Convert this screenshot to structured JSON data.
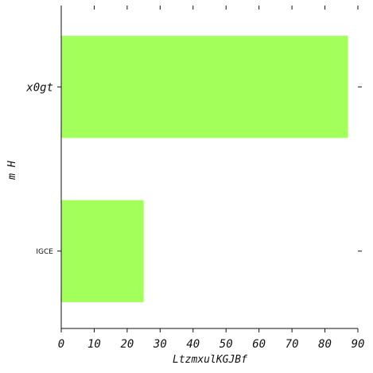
{
  "chart_data": {
    "type": "bar",
    "orientation": "horizontal",
    "categories": [
      "x0gt",
      "IGCE"
    ],
    "values": [
      87,
      25
    ],
    "xlabel": "LtzmxulKGJBf",
    "ylabel": "m H",
    "xlim": [
      0,
      90
    ],
    "xticks": [
      "0",
      "10",
      "20",
      "30",
      "40",
      "50",
      "60",
      "70",
      "80",
      "90"
    ],
    "bar_color": "#a3ff5a",
    "grid": false
  }
}
